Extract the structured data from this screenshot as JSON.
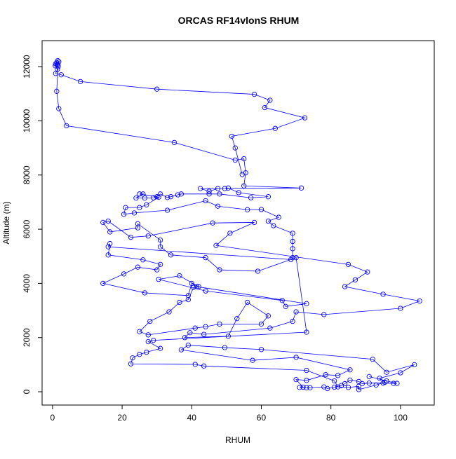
{
  "chart_data": {
    "type": "line",
    "title": "ORCAS RF14vlonS RHUM",
    "xlabel": "RHUM",
    "ylabel": "Altitude (m)",
    "x": [
      54.5,
      52.5,
      51.5,
      64,
      72.5,
      61,
      62.5,
      58,
      30,
      8,
      2.5,
      0.9,
      1.4,
      1.6,
      0.8,
      1.3,
      0.9,
      1.2,
      1.8,
      1.5,
      1.6,
      1.2,
      1.8,
      4,
      35,
      52.5,
      55,
      55.5,
      55,
      71.5,
      42.5,
      45,
      47.5,
      49.5,
      50.5,
      53.5,
      62,
      57,
      48,
      45,
      37,
      36,
      34,
      33,
      31,
      30,
      25,
      26,
      24,
      26.5,
      29,
      30.5,
      27,
      25,
      21,
      20.5,
      23.5,
      33,
      44,
      47.5,
      56,
      60,
      65,
      62,
      63.5,
      69,
      69,
      69,
      69,
      68.5,
      16,
      16.5,
      16,
      26,
      31,
      30,
      24.5,
      20.5,
      14.5,
      26.5,
      39,
      40,
      42,
      36.5,
      30.5,
      44,
      66,
      67,
      73,
      41.5,
      40.5,
      39,
      36.5,
      33.5,
      28,
      25,
      27.5,
      41,
      44,
      48,
      60,
      62,
      56,
      53,
      50.5,
      38,
      39.5,
      43.5,
      62.5,
      69,
      70,
      78,
      100,
      105.5,
      95,
      84,
      87,
      90.5,
      85,
      47,
      51,
      58,
      46,
      27.5,
      22.5,
      16,
      14.5,
      16.5,
      24.5,
      24.5,
      31,
      31,
      34,
      44,
      48,
      59,
      70,
      73,
      29,
      27.5,
      31,
      27,
      25,
      23,
      22.5,
      41,
      43.5,
      73,
      81,
      82,
      85,
      88,
      88,
      93,
      95.5,
      94,
      100,
      104,
      96,
      92,
      60,
      49.5,
      39,
      37,
      57.5,
      70,
      85.5,
      82,
      78.5,
      73,
      70,
      72,
      71,
      73,
      74,
      78,
      79,
      81,
      83,
      84,
      85.5,
      88,
      89,
      91,
      95,
      98,
      99,
      96,
      91
    ],
    "series": [
      {
        "name": "RHUM",
        "color": "#0000ff",
        "values": [
          8020,
          9000,
          9430,
          9720,
          10110,
          10490,
          10760,
          10980,
          11170,
          11450,
          11700,
          11750,
          11900,
          12000,
          12030,
          12080,
          12100,
          12150,
          12180,
          12220,
          12050,
          11090,
          10450,
          9820,
          9200,
          8550,
          8600,
          8080,
          7600,
          7520,
          7500,
          7400,
          7500,
          7500,
          7520,
          7350,
          7200,
          7160,
          7300,
          7300,
          7300,
          7270,
          7200,
          7170,
          7300,
          7200,
          7300,
          7300,
          7150,
          7150,
          7160,
          7180,
          6900,
          6800,
          6800,
          6550,
          6600,
          6700,
          7050,
          6850,
          6720,
          6730,
          6440,
          6300,
          6130,
          5850,
          5550,
          5280,
          4950,
          4880,
          5350,
          5470,
          5050,
          4870,
          4700,
          4500,
          4600,
          4350,
          4000,
          3650,
          3550,
          4000,
          3880,
          4280,
          4150,
          3720,
          3370,
          3150,
          3250,
          3880,
          3850,
          3400,
          3300,
          2950,
          2600,
          2220,
          2100,
          2350,
          2400,
          2500,
          2500,
          2800,
          3300,
          2700,
          2050,
          2000,
          2180,
          2120,
          2350,
          2600,
          2950,
          2850,
          3080,
          3350,
          3600,
          3880,
          4130,
          4420,
          4700,
          5400,
          5850,
          6250,
          6230,
          5750,
          5700,
          6300,
          6250,
          5900,
          6050,
          6200,
          5600,
          5350,
          5050,
          4950,
          4500,
          4450,
          4950,
          2200,
          1900,
          1850,
          1600,
          1460,
          1380,
          1250,
          1030,
          1010,
          950,
          790,
          400,
          180,
          160,
          200,
          80,
          250,
          350,
          500,
          700,
          1000,
          720,
          1200,
          1560,
          1630,
          1720,
          1550,
          1160,
          1270,
          810,
          600,
          630,
          420,
          450,
          170,
          160,
          150,
          150,
          180,
          120,
          170,
          230,
          300,
          430,
          380,
          300,
          320,
          320,
          310,
          310,
          400,
          560
        ]
      }
    ],
    "xlim": [
      -3.0,
      109.7
    ],
    "ylim": [
      -490,
      12960
    ],
    "xticks": [
      0,
      20,
      40,
      60,
      80,
      100
    ],
    "yticks": [
      0,
      2000,
      4000,
      6000,
      8000,
      10000,
      12000
    ]
  }
}
